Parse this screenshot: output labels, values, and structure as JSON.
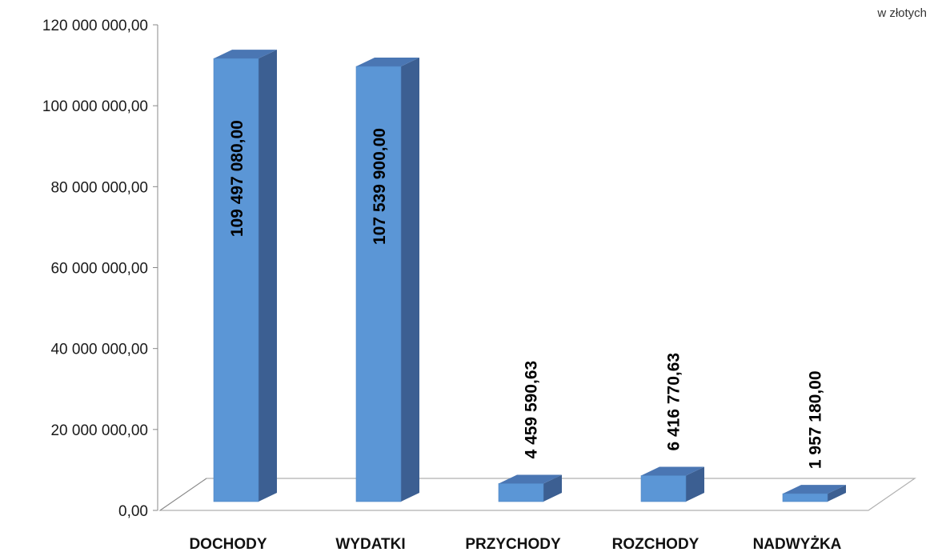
{
  "chart_data": {
    "type": "bar",
    "unit_label": "w złotych",
    "categories": [
      "DOCHODY",
      "WYDATKI",
      "PRZYCHODY",
      "ROZCHODY",
      "NADWYŻKA"
    ],
    "values": [
      109497080.0,
      107539900.0,
      4459590.63,
      6416770.63,
      1957180.0
    ],
    "value_labels": [
      "109 497 080,00",
      "107 539 900,00",
      "4 459 590,63",
      "6 416 770,63",
      "1 957 180,00"
    ],
    "yticks": [
      "0,00",
      "20 000 000,00",
      "40 000 000,00",
      "60 000 000,00",
      "80 000 000,00",
      "100 000 000,00",
      "120 000 000,00"
    ],
    "ylim": [
      0,
      120000000
    ],
    "colors": {
      "front": "#5b96d6",
      "side": "#3c5f92",
      "top": "#4a76b3",
      "floor": "#b0b0b0"
    }
  }
}
